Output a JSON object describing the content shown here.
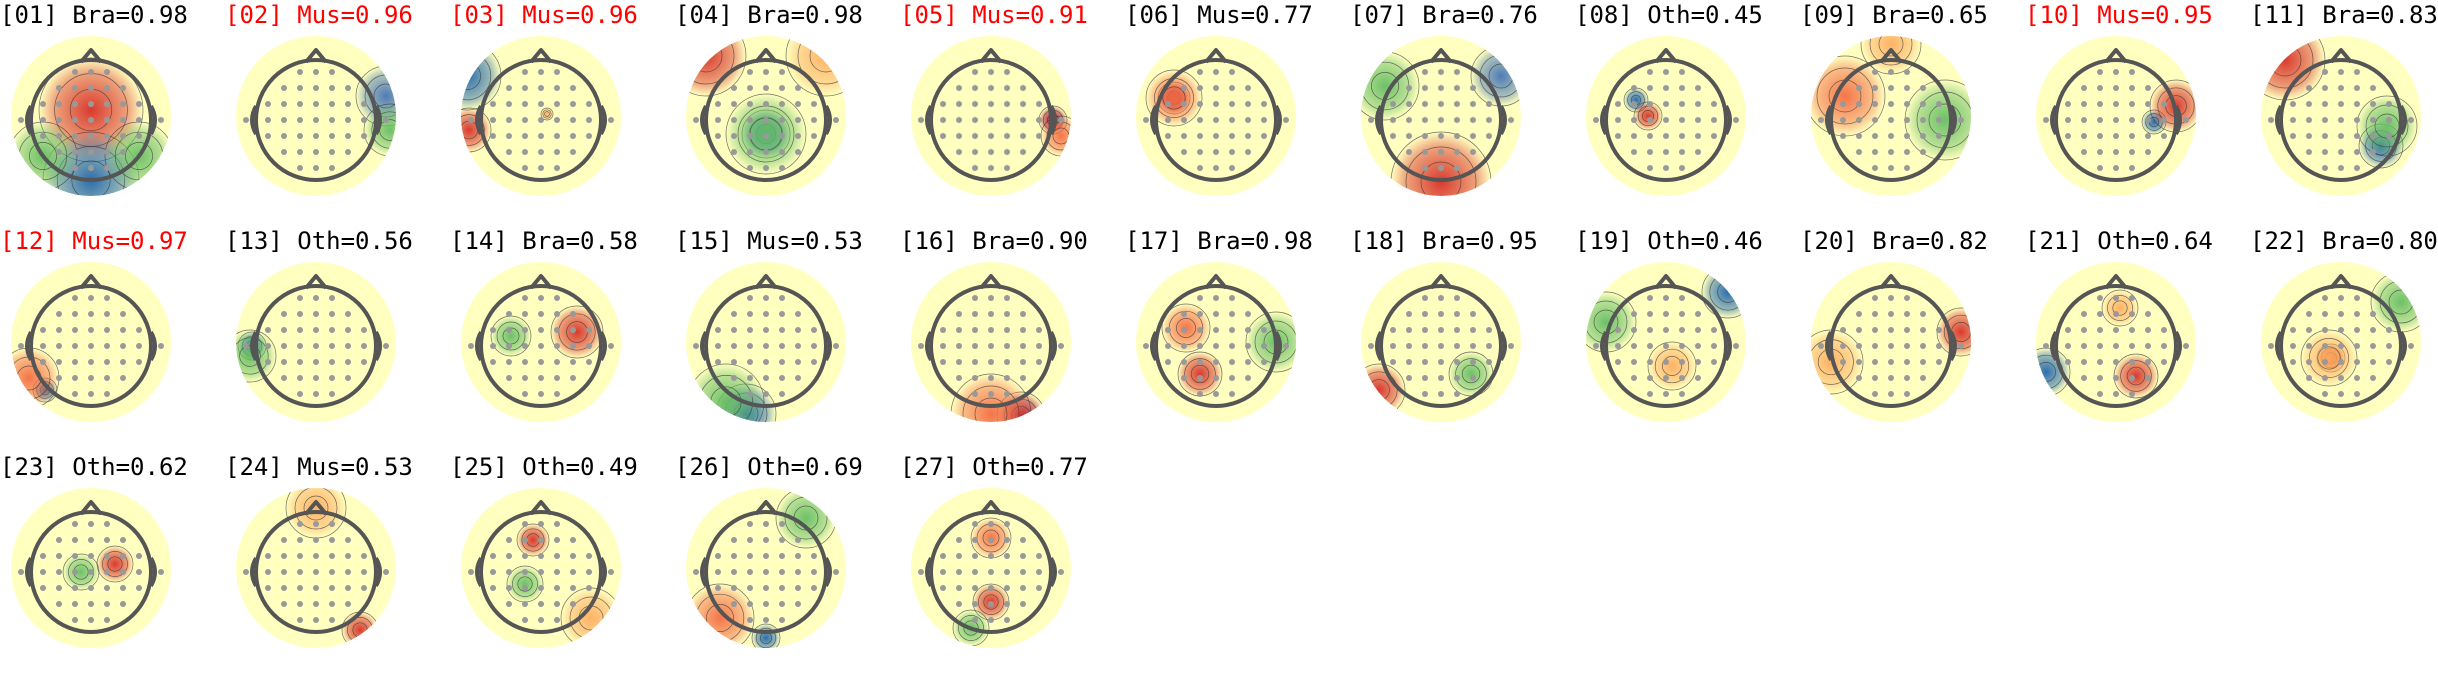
{
  "figure": {
    "highlight_color": "#ff0000",
    "text_color": "#000000",
    "colormap": "red-yellow-green-blue diverging",
    "components": [
      {
        "label": "[01] Bra=0.98",
        "highlighted": false
      },
      {
        "label": "[02] Mus=0.96",
        "highlighted": true
      },
      {
        "label": "[03] Mus=0.96",
        "highlighted": true
      },
      {
        "label": "[04] Bra=0.98",
        "highlighted": false
      },
      {
        "label": "[05] Mus=0.91",
        "highlighted": true
      },
      {
        "label": "[06] Mus=0.77",
        "highlighted": false
      },
      {
        "label": "[07] Bra=0.76",
        "highlighted": false
      },
      {
        "label": "[08] Oth=0.45",
        "highlighted": false
      },
      {
        "label": "[09] Bra=0.65",
        "highlighted": false
      },
      {
        "label": "[10] Mus=0.95",
        "highlighted": true
      },
      {
        "label": "[11] Bra=0.83",
        "highlighted": false
      },
      {
        "label": "[12] Mus=0.97",
        "highlighted": true
      },
      {
        "label": "[13] Oth=0.56",
        "highlighted": false
      },
      {
        "label": "[14] Bra=0.58",
        "highlighted": false
      },
      {
        "label": "[15] Mus=0.53",
        "highlighted": false
      },
      {
        "label": "[16] Bra=0.90",
        "highlighted": false
      },
      {
        "label": "[17] Bra=0.98",
        "highlighted": false
      },
      {
        "label": "[18] Bra=0.95",
        "highlighted": false
      },
      {
        "label": "[19] Oth=0.46",
        "highlighted": false
      },
      {
        "label": "[20] Bra=0.82",
        "highlighted": false
      },
      {
        "label": "[21] Oth=0.64",
        "highlighted": false
      },
      {
        "label": "[22] Bra=0.80",
        "highlighted": false
      },
      {
        "label": "[23] Oth=0.62",
        "highlighted": false
      },
      {
        "label": "[24] Mus=0.53",
        "highlighted": false
      },
      {
        "label": "[25] Oth=0.49",
        "highlighted": false
      },
      {
        "label": "[26] Oth=0.69",
        "highlighted": false
      },
      {
        "label": "[27] Oth=0.77",
        "highlighted": false
      }
    ]
  }
}
